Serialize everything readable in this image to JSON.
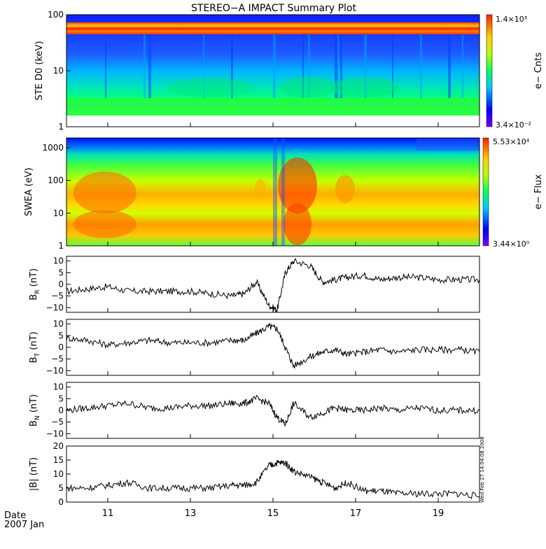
{
  "title": "STEREO−A IMPACT Summary Plot",
  "date_label": "Date",
  "date_year": "2007 Jan",
  "timestamp": "Wed Feb 27 14:04:08 2008",
  "colorbars": {
    "ste": {
      "max": "1.4×10³",
      "min": "3.4×10⁻²",
      "label": "e− Cnts"
    },
    "swea": {
      "max": "5.53×10⁴",
      "min": "3.44×10⁰",
      "label": "e− Flux"
    }
  },
  "chart_data": [
    {
      "type": "heatmap",
      "name": "ste",
      "ylabel": "STE D0 (keV)",
      "yscale": "log",
      "ylim": [
        1,
        100
      ],
      "yticks": [
        "1",
        "10",
        "100"
      ],
      "xlim": [
        10,
        20
      ],
      "colormap": "rainbow",
      "zmin": 0.034,
      "zmax": 1400
    },
    {
      "type": "heatmap",
      "name": "swea",
      "ylabel": "SWEA (eV)",
      "yscale": "log",
      "ylim": [
        1,
        2000
      ],
      "yticks": [
        "1",
        "10",
        "100",
        "1000"
      ],
      "xlim": [
        10,
        20
      ],
      "colormap": "rainbow",
      "zmin": 3.44,
      "zmax": 55300
    },
    {
      "type": "line",
      "name": "br",
      "ylabel_main": "B",
      "ylabel_sub": "R",
      "ylabel_unit": "(nT)",
      "ylim": [
        -12,
        12
      ],
      "yticks": [
        "−10",
        "−5",
        "0",
        "5",
        "10"
      ],
      "ytick_values": [
        -10,
        -5,
        0,
        5,
        10
      ],
      "x": [
        10,
        10.5,
        11,
        11.5,
        12,
        12.5,
        13,
        13.5,
        14,
        14.3,
        14.6,
        14.9,
        15.1,
        15.3,
        15.5,
        15.9,
        16.2,
        16.5,
        16.8,
        17.2,
        17.6,
        18,
        18.5,
        19,
        19.5,
        20
      ],
      "y": [
        -3,
        -2,
        -1,
        -3,
        -3,
        -3,
        -3,
        -4,
        -5,
        -4,
        1,
        -9,
        -11,
        5,
        10,
        8,
        1,
        2,
        3,
        4,
        2,
        3,
        3,
        2,
        2,
        2
      ]
    },
    {
      "type": "line",
      "name": "bt",
      "ylabel_main": "B",
      "ylabel_sub": "T",
      "ylabel_unit": "(nT)",
      "ylim": [
        -12,
        12
      ],
      "yticks": [
        "−10",
        "−5",
        "0",
        "5",
        "10"
      ],
      "ytick_values": [
        -10,
        -5,
        0,
        5,
        10
      ],
      "x": [
        10,
        10.5,
        11,
        11.5,
        12,
        12.5,
        13,
        13.5,
        14,
        14.3,
        14.6,
        14.9,
        15.1,
        15.3,
        15.5,
        15.9,
        16.2,
        16.5,
        16.8,
        17.2,
        17.6,
        18,
        18.5,
        19,
        19.5,
        20
      ],
      "y": [
        4,
        3,
        1,
        2,
        3,
        2,
        2,
        2,
        3,
        3,
        6,
        9,
        8,
        0,
        -8,
        -4,
        -2,
        -1,
        -3,
        -2,
        -1,
        -2,
        -1,
        -1,
        -1,
        -2
      ]
    },
    {
      "type": "line",
      "name": "bn",
      "ylabel_main": "B",
      "ylabel_sub": "N",
      "ylabel_unit": "(nT)",
      "ylim": [
        -12,
        12
      ],
      "yticks": [
        "−10",
        "−5",
        "0",
        "5",
        "10"
      ],
      "ytick_values": [
        -10,
        -5,
        0,
        5,
        10
      ],
      "x": [
        10,
        10.5,
        11,
        11.5,
        12,
        12.5,
        13,
        13.5,
        14,
        14.3,
        14.6,
        14.9,
        15.1,
        15.3,
        15.5,
        15.9,
        16.2,
        16.5,
        16.8,
        17.2,
        17.6,
        18,
        18.5,
        19,
        19.5,
        20
      ],
      "y": [
        0,
        1,
        2,
        3,
        1,
        1,
        2,
        2,
        3,
        3,
        5,
        3,
        -3,
        -6,
        3,
        -3,
        -1,
        1,
        0,
        0,
        1,
        0,
        1,
        0,
        0,
        0
      ]
    },
    {
      "type": "line",
      "name": "bmag",
      "ylabel_main": "|B|",
      "ylabel_sub": "",
      "ylabel_unit": "(nT)",
      "ylim": [
        0,
        20
      ],
      "yticks": [
        "0",
        "5",
        "10",
        "15",
        "20"
      ],
      "ytick_values": [
        0,
        5,
        10,
        15,
        20
      ],
      "x": [
        10,
        10.5,
        11,
        11.5,
        12,
        12.5,
        13,
        13.5,
        14,
        14.3,
        14.6,
        14.9,
        15.1,
        15.3,
        15.5,
        15.9,
        16.2,
        16.5,
        16.8,
        17.2,
        17.6,
        18,
        18.5,
        19,
        19.5,
        20
      ],
      "y": [
        5,
        5,
        6,
        7,
        5,
        5,
        5,
        5,
        6,
        6,
        7,
        13,
        14,
        14,
        11,
        9,
        7,
        5,
        7,
        4,
        4,
        3,
        3,
        3,
        3,
        2
      ]
    }
  ],
  "xaxis": {
    "xlim": [
      10,
      20
    ],
    "tick_values": [
      11,
      13,
      15,
      17,
      19
    ],
    "tick_labels": [
      "11",
      "13",
      "15",
      "17",
      "19"
    ]
  }
}
